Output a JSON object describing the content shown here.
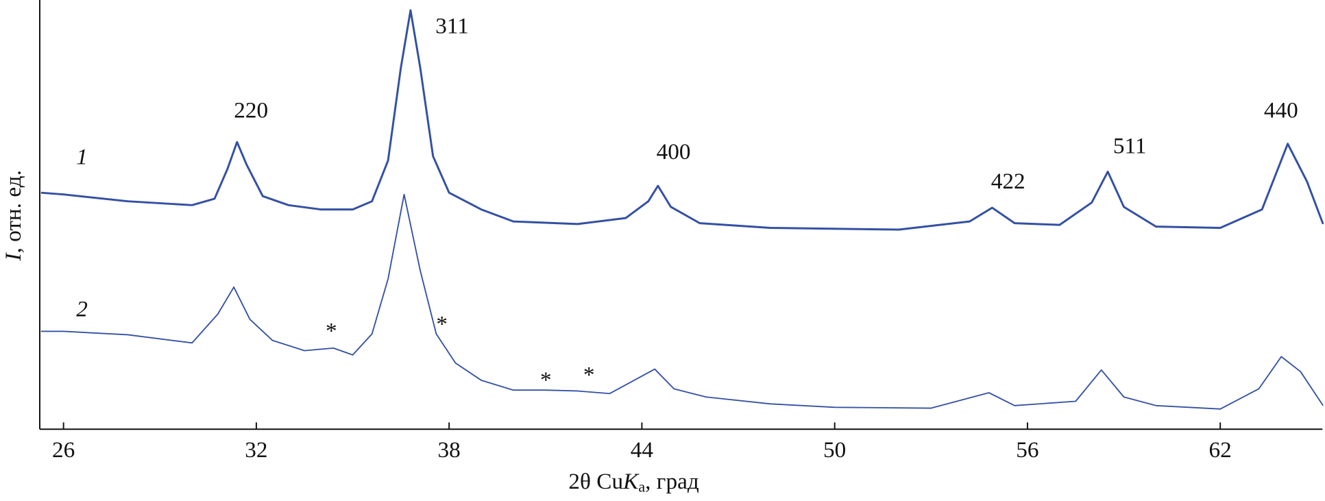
{
  "chart_data": {
    "type": "line",
    "x_label_parts": [
      "2θ Cu",
      "K",
      "a",
      ", град"
    ],
    "y_label_parts": [
      "I",
      ", отн. ед."
    ],
    "xlim": [
      25.26,
      65.18
    ],
    "ylim": [
      0,
      100
    ],
    "xticks": [
      26,
      32,
      38,
      44,
      50,
      56,
      62
    ],
    "series": [
      {
        "name": "1",
        "color": "#3350a3",
        "x": [
          25.3,
          26,
          28,
          30,
          30.7,
          31.1,
          31.4,
          31.7,
          32.2,
          33,
          34,
          35,
          35.6,
          36.1,
          36.5,
          36.8,
          37.1,
          37.5,
          38,
          39,
          40,
          42,
          43.5,
          44.2,
          44.5,
          44.9,
          45.8,
          48,
          52,
          54.2,
          54.9,
          55.6,
          57,
          58,
          58.5,
          59,
          60,
          62,
          63.3,
          64.1,
          64.7,
          65.2
        ],
        "values": [
          55.1,
          54.7,
          53.1,
          52.2,
          53.7,
          60.6,
          66.9,
          61.6,
          54.3,
          52.2,
          51.2,
          51.2,
          53.1,
          62.6,
          84.3,
          97.6,
          84.3,
          63.6,
          55.1,
          51.2,
          48.4,
          47.8,
          49.2,
          53.1,
          56.7,
          51.8,
          48.0,
          46.9,
          46.5,
          48.4,
          51.6,
          48.0,
          47.6,
          52.8,
          60.0,
          51.8,
          47.2,
          46.9,
          51.2,
          66.5,
          57.7,
          47.8
        ]
      },
      {
        "name": "2",
        "color": "#3350a3",
        "x": [
          25.3,
          26,
          28,
          30,
          30.8,
          31.3,
          31.8,
          32.5,
          33.5,
          34.4,
          35,
          35.6,
          36.1,
          36.6,
          37.1,
          37.6,
          38.2,
          39,
          40,
          41,
          42,
          43,
          44.4,
          45,
          46,
          48,
          50,
          53,
          54.8,
          55.6,
          57.5,
          58.3,
          59,
          60,
          62,
          63.2,
          63.9,
          64.5,
          65.2
        ],
        "values": [
          22.8,
          22.8,
          22.0,
          20.1,
          26.8,
          33.1,
          25.6,
          20.7,
          18.3,
          18.9,
          17.3,
          22.2,
          35.0,
          54.7,
          37.0,
          22.2,
          15.4,
          11.4,
          9.1,
          9.1,
          8.9,
          8.3,
          14.0,
          9.4,
          7.5,
          5.9,
          5.1,
          4.9,
          8.5,
          5.5,
          6.5,
          13.8,
          7.5,
          5.5,
          4.7,
          9.4,
          16.9,
          13.4,
          5.5
        ]
      }
    ],
    "peak_labels": [
      "220",
      "311",
      "400",
      "422",
      "511",
      "440"
    ],
    "markers": [
      "*",
      "*",
      "*",
      "*"
    ]
  }
}
